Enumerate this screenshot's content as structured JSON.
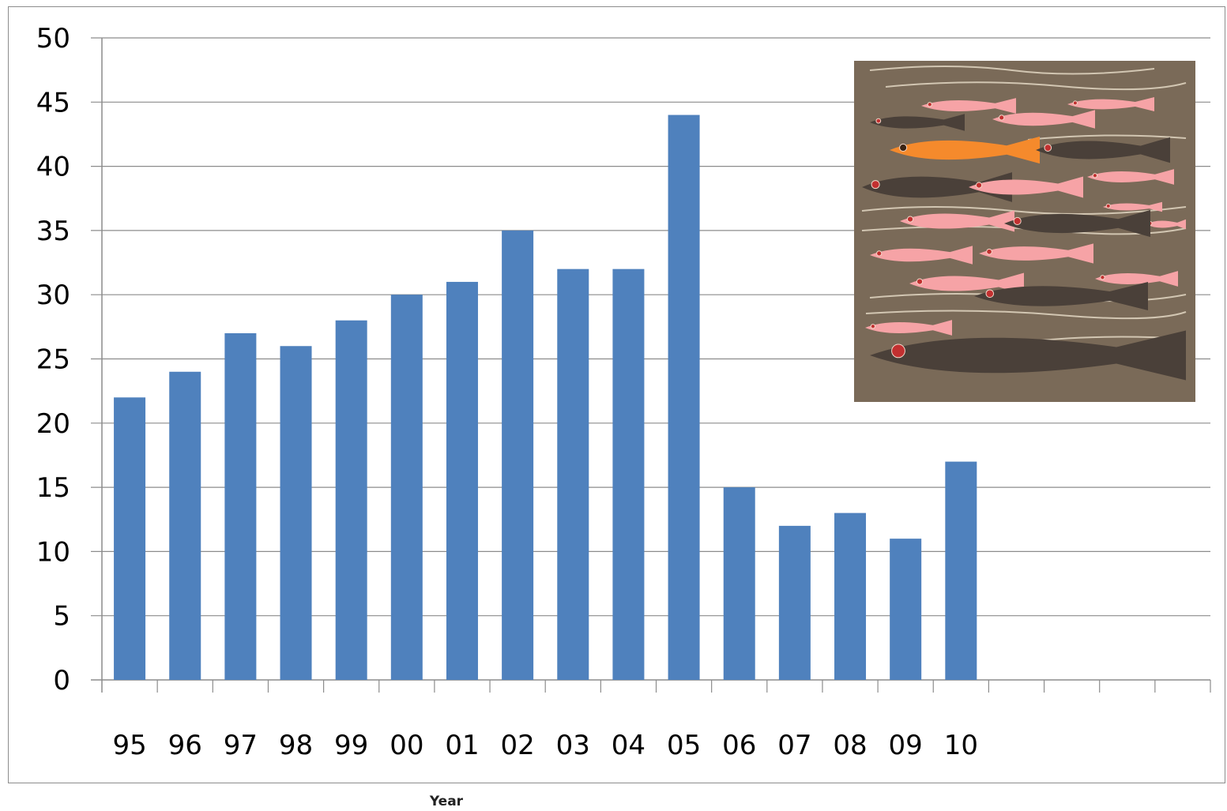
{
  "chart_data": {
    "type": "bar",
    "title": "",
    "xlabel": "Year",
    "ylabel": "",
    "ylim": [
      0,
      50
    ],
    "yticks": [
      0,
      5,
      10,
      15,
      20,
      25,
      30,
      35,
      40,
      45,
      50
    ],
    "total_slots": 20,
    "categories": [
      "95",
      "96",
      "97",
      "98",
      "99",
      "00",
      "01",
      "02",
      "03",
      "04",
      "05",
      "06",
      "07",
      "08",
      "09",
      "10"
    ],
    "values": [
      22,
      24,
      27,
      26,
      28,
      30,
      31,
      35,
      32,
      32,
      44,
      15,
      12,
      13,
      11,
      17
    ],
    "bar_color": "#4f81bd",
    "grid": true,
    "legend": "none"
  },
  "inset_image": {
    "description": "school of fish",
    "background_color": "#7a6a58",
    "highlight_fish_color": "#f58a2c",
    "pink_fish_color": "#f6a3a6",
    "dark_fish_color": "#4a4039"
  }
}
